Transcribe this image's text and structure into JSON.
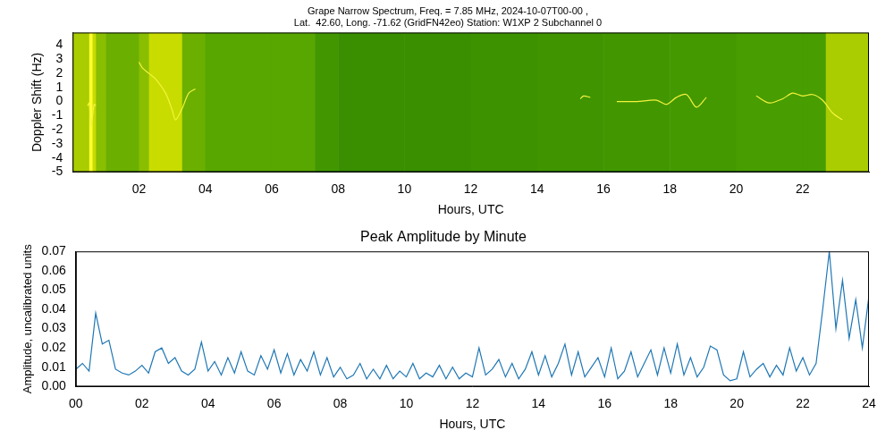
{
  "chart_data": [
    {
      "type": "heatmap",
      "title": [
        "Grape Narrow Spectrum, Freq. = 7.85 MHz, 2024-10-07T00-00 ,",
        "Lat.  42.60, Long. -71.62 (GridFN42eo) Station: W1XP 2 Subchannel 0"
      ],
      "xlabel": "Hours, UTC",
      "ylabel": "Doppler Shift (Hz)",
      "xlim": [
        0,
        24
      ],
      "xticks": [
        {
          "value": 2,
          "label": "02"
        },
        {
          "value": 4,
          "label": "04"
        },
        {
          "value": 6,
          "label": "06"
        },
        {
          "value": 8,
          "label": "08"
        },
        {
          "value": 10,
          "label": "10"
        },
        {
          "value": 12,
          "label": "12"
        },
        {
          "value": 14,
          "label": "14"
        },
        {
          "value": 16,
          "label": "16"
        },
        {
          "value": 18,
          "label": "18"
        },
        {
          "value": 20,
          "label": "20"
        },
        {
          "value": 22,
          "label": "22"
        }
      ],
      "ylim": [
        -5,
        4.9
      ],
      "yticks": [
        -5,
        -4,
        -3,
        -2,
        -1,
        0,
        1,
        2,
        3,
        4
      ],
      "grid": false,
      "x_bins": [
        0,
        0.5,
        0.6,
        0.7,
        1,
        2,
        2.3,
        3.3,
        4,
        5,
        6,
        7.3,
        8,
        10,
        12,
        14,
        16,
        18,
        20,
        22,
        22.7,
        24
      ],
      "y_bins": [
        -5,
        4.9
      ],
      "cells": [
        [
          0.55,
          0.8,
          0.6,
          0.5,
          0.45,
          0.5,
          0.6,
          0.45,
          0.42,
          0.42,
          0.42,
          0.35,
          0.3,
          0.3,
          0.32,
          0.33,
          0.35,
          0.36,
          0.38,
          0.38,
          0.55
        ]
      ],
      "zlim": [
        0,
        1
      ],
      "series": [
        {
          "type": "line",
          "color": "#f4f43c",
          "x": [
            0.45,
            0.5,
            0.55,
            0.6,
            0.65,
            0.7,
            1.5,
            2.0,
            2.1,
            2.3,
            2.5,
            2.8,
            3.0,
            3.1,
            3.3,
            3.5,
            3.7,
            9,
            15.3,
            15.4,
            15.6,
            16,
            16.4,
            17.0,
            17.6,
            17.9,
            18.2,
            18.5,
            18.8,
            19.1,
            20,
            20.6,
            21.0,
            21.4,
            21.7,
            22.0,
            22.3,
            22.6,
            22.9,
            23.2
          ],
          "values": [
            -0.3,
            -0.1,
            -1.8,
            -1.0,
            -0.2,
            -0.3,
            null,
            2.8,
            2.4,
            2.0,
            1.6,
            0.6,
            -0.6,
            -1.3,
            -0.5,
            0.6,
            0.9,
            null,
            0.2,
            0.4,
            0.3,
            null,
            0,
            0,
            0.1,
            -0.2,
            0.3,
            0.5,
            -0.4,
            0.3,
            null,
            0.4,
            -0.1,
            0.2,
            0.6,
            0.4,
            0.5,
            0.1,
            -0.8,
            -1.3
          ]
        }
      ]
    },
    {
      "type": "line",
      "title": "Peak Amplitude by Minute",
      "xlabel": "Hours, UTC",
      "ylabel": "Amplitude, uncalibrated units",
      "color": "#1f77b4",
      "grid": false,
      "xlim": [
        0,
        24
      ],
      "xticks": [
        {
          "value": 0,
          "label": "00"
        },
        {
          "value": 2,
          "label": "02"
        },
        {
          "value": 4,
          "label": "04"
        },
        {
          "value": 6,
          "label": "06"
        },
        {
          "value": 8,
          "label": "08"
        },
        {
          "value": 10,
          "label": "10"
        },
        {
          "value": 12,
          "label": "12"
        },
        {
          "value": 14,
          "label": "14"
        },
        {
          "value": 16,
          "label": "16"
        },
        {
          "value": 18,
          "label": "18"
        },
        {
          "value": 20,
          "label": "20"
        },
        {
          "value": 22,
          "label": "22"
        },
        {
          "value": 24,
          "label": "24"
        }
      ],
      "ylim": [
        0,
        0.07
      ],
      "yticks": [
        {
          "value": 0,
          "label": "0.00"
        },
        {
          "value": 0.01,
          "label": "0.01"
        },
        {
          "value": 0.02,
          "label": "0.02"
        },
        {
          "value": 0.03,
          "label": "0.03"
        },
        {
          "value": 0.04,
          "label": "0.04"
        },
        {
          "value": 0.05,
          "label": "0.05"
        },
        {
          "value": 0.06,
          "label": "0.06"
        },
        {
          "value": 0.07,
          "label": "0.07"
        }
      ],
      "x": [
        0,
        0.2,
        0.4,
        0.6,
        0.8,
        1.0,
        1.2,
        1.4,
        1.6,
        1.8,
        2.0,
        2.2,
        2.4,
        2.6,
        2.8,
        3.0,
        3.2,
        3.4,
        3.6,
        3.8,
        4.0,
        4.2,
        4.4,
        4.6,
        4.8,
        5.0,
        5.2,
        5.4,
        5.6,
        5.8,
        6.0,
        6.2,
        6.4,
        6.6,
        6.8,
        7.0,
        7.2,
        7.4,
        7.6,
        7.8,
        8.0,
        8.2,
        8.4,
        8.6,
        8.8,
        9.0,
        9.2,
        9.4,
        9.6,
        9.8,
        10.0,
        10.2,
        10.4,
        10.6,
        10.8,
        11.0,
        11.2,
        11.4,
        11.6,
        11.8,
        12.0,
        12.2,
        12.4,
        12.6,
        12.8,
        13.0,
        13.2,
        13.4,
        13.6,
        13.8,
        14.0,
        14.2,
        14.4,
        14.6,
        14.8,
        15.0,
        15.2,
        15.4,
        15.6,
        15.8,
        16.0,
        16.2,
        16.4,
        16.6,
        16.8,
        17.0,
        17.2,
        17.4,
        17.6,
        17.8,
        18.0,
        18.2,
        18.4,
        18.6,
        18.8,
        19.0,
        19.2,
        19.4,
        19.6,
        19.8,
        20.0,
        20.2,
        20.4,
        20.6,
        20.8,
        21.0,
        21.2,
        21.4,
        21.6,
        21.8,
        22.0,
        22.2,
        22.4,
        22.6,
        22.8,
        23.0,
        23.2,
        23.4,
        23.6,
        23.8,
        24.0
      ],
      "values": [
        0.009,
        0.012,
        0.008,
        0.038,
        0.022,
        0.024,
        0.009,
        0.007,
        0.006,
        0.008,
        0.011,
        0.007,
        0.018,
        0.02,
        0.012,
        0.015,
        0.008,
        0.006,
        0.009,
        0.023,
        0.008,
        0.013,
        0.006,
        0.015,
        0.007,
        0.018,
        0.008,
        0.006,
        0.016,
        0.009,
        0.019,
        0.007,
        0.017,
        0.006,
        0.014,
        0.008,
        0.018,
        0.006,
        0.015,
        0.005,
        0.01,
        0.004,
        0.006,
        0.012,
        0.004,
        0.009,
        0.004,
        0.011,
        0.004,
        0.008,
        0.005,
        0.012,
        0.004,
        0.007,
        0.005,
        0.011,
        0.004,
        0.01,
        0.004,
        0.007,
        0.005,
        0.02,
        0.006,
        0.009,
        0.014,
        0.005,
        0.012,
        0.004,
        0.009,
        0.018,
        0.006,
        0.016,
        0.005,
        0.012,
        0.022,
        0.006,
        0.018,
        0.005,
        0.01,
        0.015,
        0.005,
        0.02,
        0.004,
        0.008,
        0.018,
        0.005,
        0.012,
        0.019,
        0.006,
        0.02,
        0.007,
        0.022,
        0.006,
        0.015,
        0.005,
        0.01,
        0.021,
        0.019,
        0.006,
        0.003,
        0.004,
        0.018,
        0.005,
        0.009,
        0.012,
        0.005,
        0.011,
        0.006,
        0.02,
        0.008,
        0.015,
        0.006,
        0.012,
        0.04,
        0.07,
        0.03,
        0.055,
        0.025,
        0.045,
        0.02,
        0.047
      ]
    }
  ]
}
